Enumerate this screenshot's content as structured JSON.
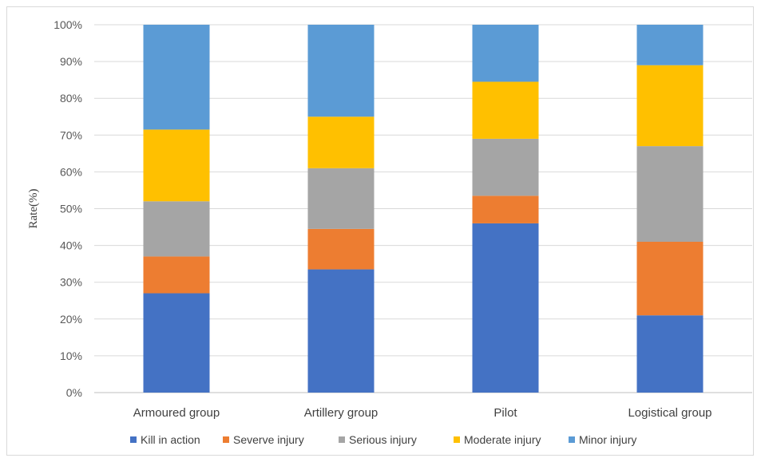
{
  "chart_data": {
    "type": "bar",
    "stacked": true,
    "normalized": true,
    "categories": [
      "Armoured group",
      "Artillery group",
      "Pilot",
      "Logistical group"
    ],
    "series": [
      {
        "name": "Kill in action",
        "color": "#4472C4",
        "values": [
          27,
          33.5,
          46,
          21
        ]
      },
      {
        "name": "Severve injury",
        "color": "#ED7D31",
        "values": [
          10,
          11,
          7.5,
          20
        ]
      },
      {
        "name": "Serious injury",
        "color": "#A5A5A5",
        "values": [
          15,
          16.5,
          15.5,
          26
        ]
      },
      {
        "name": "Moderate injury",
        "color": "#FFC000",
        "values": [
          19.5,
          14,
          15.5,
          22
        ]
      },
      {
        "name": "Minor injury",
        "color": "#5B9BD5",
        "values": [
          28.5,
          25,
          15.5,
          11
        ]
      }
    ],
    "ylabel": "Rate(%)",
    "xlabel": "",
    "ylim": [
      0,
      100
    ],
    "yticks": [
      "0%",
      "10%",
      "20%",
      "30%",
      "40%",
      "50%",
      "60%",
      "70%",
      "80%",
      "90%",
      "100%"
    ],
    "grid": true,
    "legend_position": "bottom"
  }
}
